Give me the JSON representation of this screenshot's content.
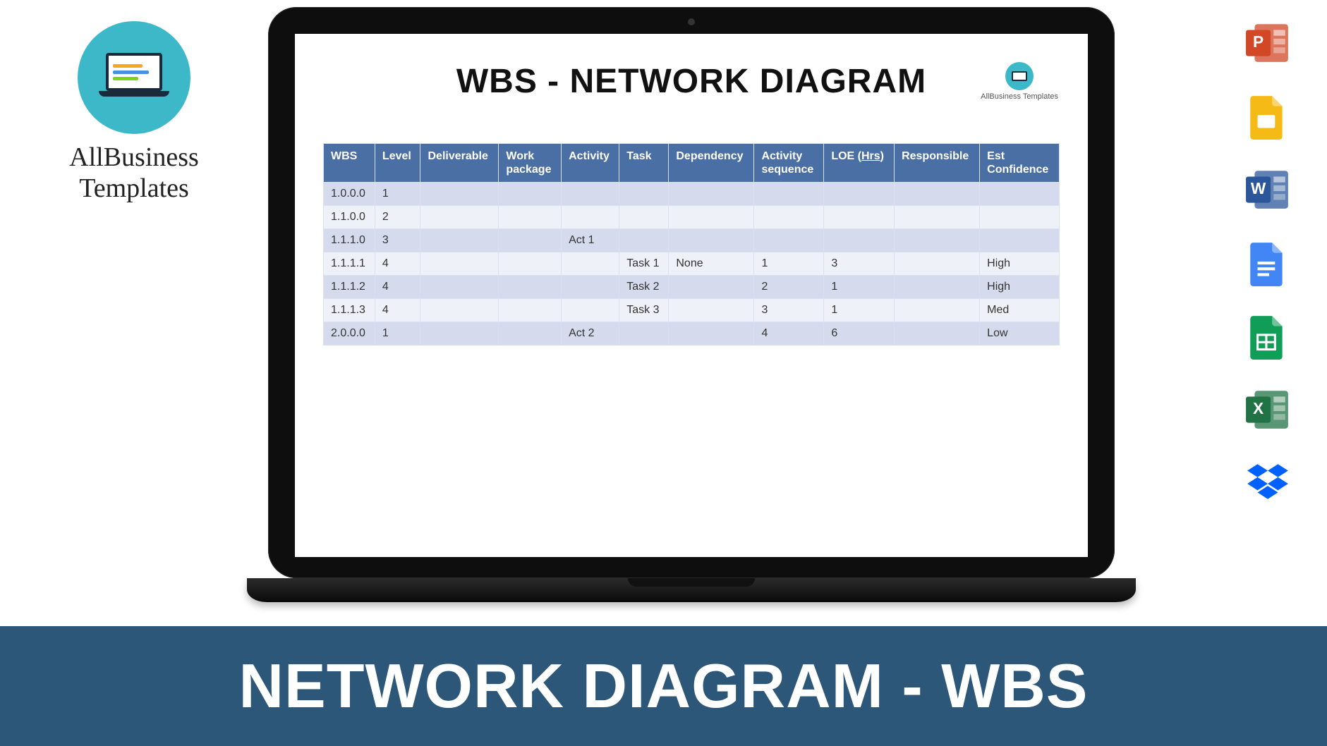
{
  "brand": {
    "name_line1": "AllBusiness",
    "name_line2": "Templates",
    "circle_color": "#3cb8c9"
  },
  "document": {
    "title": "WBS - NETWORK DIAGRAM",
    "mini_brand_text": "AllBusiness Templates"
  },
  "table": {
    "type": "table",
    "header_bg": "#4a6fa5",
    "header_color": "#ffffff",
    "row_even_bg": "#d5dbed",
    "row_odd_bg": "#eef1f8",
    "border_color": "#d9e0ee",
    "columns": [
      "WBS",
      "Level",
      "Deliverable",
      "Work package",
      "Activity",
      "Task",
      "Dependency",
      "Activity sequence",
      "LOE (Hrs)",
      "Responsible",
      "Est Confidence"
    ],
    "rows": [
      [
        "1.0.0.0",
        "1",
        "",
        "",
        "",
        "",
        "",
        "",
        "",
        "",
        ""
      ],
      [
        "1.1.0.0",
        "2",
        "",
        "",
        "",
        "",
        "",
        "",
        "",
        "",
        ""
      ],
      [
        "1.1.1.0",
        "3",
        "",
        "",
        "Act 1",
        "",
        "",
        "",
        "",
        "",
        ""
      ],
      [
        "1.1.1.1",
        "4",
        "",
        "",
        "",
        "Task 1",
        "None",
        "1",
        "3",
        "",
        "High"
      ],
      [
        "1.1.1.2",
        "4",
        "",
        "",
        "",
        "Task 2",
        "",
        "2",
        "1",
        "",
        "High"
      ],
      [
        "1.1.1.3",
        "4",
        "",
        "",
        "",
        "Task 3",
        "",
        "3",
        "1",
        "",
        "Med"
      ],
      [
        "2.0.0.0",
        "1",
        "",
        "",
        "Act 2",
        "",
        "",
        "4",
        "6",
        "",
        "Low"
      ]
    ]
  },
  "right_apps": [
    {
      "name": "powerpoint",
      "color": "#d24726",
      "letter": "P"
    },
    {
      "name": "google-slides",
      "color": "#f5ba15",
      "letter": ""
    },
    {
      "name": "word",
      "color": "#2b579a",
      "letter": "W"
    },
    {
      "name": "google-docs",
      "color": "#4285f4",
      "letter": ""
    },
    {
      "name": "google-sheets",
      "color": "#0f9d58",
      "letter": ""
    },
    {
      "name": "excel",
      "color": "#217346",
      "letter": "X"
    },
    {
      "name": "dropbox",
      "color": "#0061ff",
      "letter": ""
    }
  ],
  "footer": {
    "text": "NETWORK DIAGRAM - WBS",
    "bg": "#2c5779",
    "color": "#ffffff"
  }
}
